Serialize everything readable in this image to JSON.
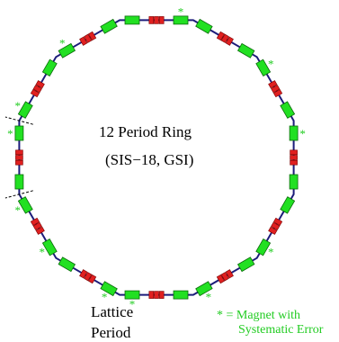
{
  "center_text": {
    "line1": "12 Period Ring",
    "line2": "(SIS−18, GSI)"
  },
  "period_label": {
    "line1": "Lattice",
    "line2": "Period"
  },
  "legend": {
    "line1": "* = Magnet with",
    "line2": "Systematic Error"
  },
  "star_symbol": "*",
  "lattice": {
    "periods": 12,
    "dipoles_per_period": 2,
    "quadrupoles_per_period": 3
  },
  "colors": {
    "beam_pipe": "#1c1c7a",
    "dipole": "#22e022",
    "quadrupole": "#e02020",
    "error_star": "#22cc22",
    "period_marker": "#000000",
    "legend_text": "#22cc22"
  },
  "starred_magnets": [
    {
      "period": 0,
      "dipole": 1
    },
    {
      "period": 1,
      "dipole": 1
    },
    {
      "period": 2,
      "dipole": 1
    },
    {
      "period": 3,
      "dipole": 0
    },
    {
      "period": 4,
      "dipole": 0
    },
    {
      "period": 4,
      "dipole": 1
    },
    {
      "period": 5,
      "dipole": 1
    },
    {
      "period": 6,
      "dipole": 0
    },
    {
      "period": 7,
      "dipole": 0
    },
    {
      "period": 8,
      "dipole": 1
    },
    {
      "period": 10,
      "dipole": 0
    },
    {
      "period": 11,
      "dipole": 0
    }
  ]
}
